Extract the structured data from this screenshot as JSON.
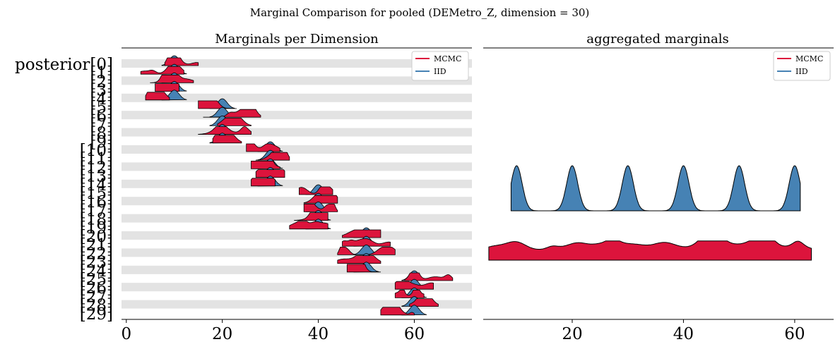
{
  "figure": {
    "suptitle": "Marginal Comparison for pooled (DEMetro_Z, dimension = 30)"
  },
  "colors": {
    "mcmc": "#dc143c",
    "iid": "#4682b4",
    "band": "#e3e3e3",
    "outline": "#000000"
  },
  "chart_data": [
    {
      "type": "ridgeline",
      "title": "Marginals per Dimension",
      "xlabel": "",
      "ylabel": "",
      "xlim": [
        -1,
        72
      ],
      "x_ticks": [
        0,
        20,
        40,
        60
      ],
      "y_tick_labels": [
        "posterior[0]",
        "[1]",
        "[2]",
        "[3]",
        "[4]",
        "[5]",
        "[6]",
        "[7]",
        "[8]",
        "[9]",
        "[10]",
        "[11]",
        "[12]",
        "[13]",
        "[14]",
        "[15]",
        "[16]",
        "[17]",
        "[18]",
        "[19]",
        "[20]",
        "[21]",
        "[22]",
        "[23]",
        "[24]",
        "[25]",
        "[26]",
        "[27]",
        "[28]",
        "[29]"
      ],
      "legend": {
        "position": "top-right",
        "entries": [
          "MCMC",
          "IID"
        ]
      },
      "series": [
        {
          "name": "MCMC",
          "ranges": [
            [
              8,
              15
            ],
            [
              3,
              12
            ],
            [
              5,
              14
            ],
            [
              6,
              11
            ],
            [
              4,
              9
            ],
            [
              15,
              23
            ],
            [
              16,
              28
            ],
            [
              19,
              26
            ],
            [
              15,
              26
            ],
            [
              18,
              24
            ],
            [
              25,
              32
            ],
            [
              27,
              34
            ],
            [
              26,
              32
            ],
            [
              27,
              33
            ],
            [
              26,
              31
            ],
            [
              36,
              43
            ],
            [
              37,
              44
            ],
            [
              37,
              44
            ],
            [
              35,
              42
            ],
            [
              34,
              42
            ],
            [
              45,
              53
            ],
            [
              45,
              55
            ],
            [
              44,
              56
            ],
            [
              44,
              53
            ],
            [
              46,
              53
            ],
            [
              58,
              68
            ],
            [
              56,
              64
            ],
            [
              56,
              62
            ],
            [
              59,
              65
            ],
            [
              53,
              60
            ]
          ]
        },
        {
          "name": "IID",
          "centers": [
            10,
            10,
            10,
            10,
            10,
            20,
            20,
            20,
            20,
            20,
            30,
            30,
            30,
            30,
            30,
            40,
            40,
            40,
            40,
            40,
            50,
            50,
            50,
            50,
            50,
            60,
            60,
            60,
            60,
            60
          ],
          "sd": 1
        }
      ]
    },
    {
      "type": "area",
      "title": "aggregated marginals",
      "xlabel": "",
      "ylabel": "",
      "xlim": [
        4,
        67
      ],
      "x_ticks": [
        20,
        40,
        60
      ],
      "legend": {
        "position": "top-right",
        "entries": [
          "MCMC",
          "IID"
        ]
      },
      "series": [
        {
          "name": "IID",
          "x_range": [
            9,
            61
          ],
          "peaks": [
            10,
            20,
            30,
            40,
            50,
            60
          ],
          "sd": 1
        },
        {
          "name": "MCMC",
          "x_range": [
            5,
            63
          ]
        }
      ]
    }
  ]
}
